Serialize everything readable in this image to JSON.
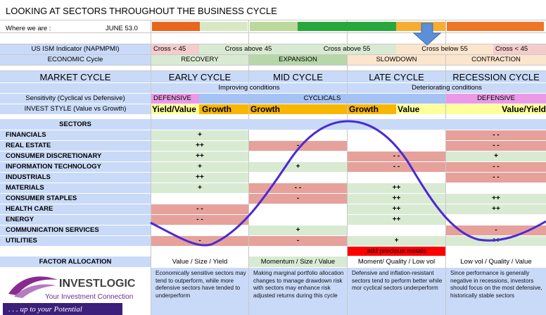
{
  "title": "LOOKING AT SECTORS THROUGHOUT THE BUSINESS CYCLE",
  "where_we_are": {
    "label": "Where we are :",
    "value": "JUNE 53.0"
  },
  "ism": {
    "label": "US ISM Indicator (NAPMPMI)",
    "cells": [
      "Cross < 45",
      "Cross above 45",
      "Cross above 55",
      "Cross below 55",
      "Cross < 45"
    ]
  },
  "economic": {
    "label": "ECONOMIC Cycle",
    "cells": [
      "RECOVERY",
      "EXPANSION",
      "SLOWDOWN",
      "CONTRACTION"
    ]
  },
  "market": {
    "label": "MARKET CYCLE",
    "phases": [
      "EARLY CYCLE",
      "MID CYCLE",
      "LATE CYCLE",
      "RECESSION CYCLE"
    ]
  },
  "conditions": {
    "improving": "Improving conditions",
    "deteriorating": "Deteriorating conditions"
  },
  "sensitivity": {
    "label": "Sensitivity (Cyclical vs Defensive)",
    "early": "DEFENSIVE",
    "cyclicals": "CYCLICALS",
    "recession": "DEFENSIVE"
  },
  "invest_style": {
    "label": "INVEST STYLE (Value vs Growth)",
    "cells": [
      "Yield/Value",
      "Growth",
      "Growth",
      "Growth",
      "Value",
      "Value/Yield"
    ]
  },
  "sectors": {
    "label": "SECTORS",
    "rows": [
      {
        "name": "FINANCIALS",
        "early": "+",
        "mid": "",
        "late": "",
        "recession": "- -"
      },
      {
        "name": "REAL ESTATE",
        "early": "++",
        "mid": "-",
        "late": "",
        "recession": "- -"
      },
      {
        "name": "CONSUMER DISCRETIONARY",
        "early": "++",
        "mid": "",
        "late": "- -",
        "recession": "+"
      },
      {
        "name": "INFORMATION TECHNOLOGY",
        "early": "+",
        "mid": "+",
        "late": "- -",
        "recession": "- -"
      },
      {
        "name": "INDUSTRIALS",
        "early": "++",
        "mid": "",
        "late": "",
        "recession": "- -"
      },
      {
        "name": "MATERIALS",
        "early": "+",
        "mid": "- -",
        "late": "++",
        "recession": ""
      },
      {
        "name": "CONSUMER STAPLES",
        "early": "",
        "mid": "-",
        "late": "++",
        "recession": "++"
      },
      {
        "name": "HEALTH CARE",
        "early": "- -",
        "mid": "",
        "late": "++",
        "recession": "++"
      },
      {
        "name": "ENERGY",
        "early": "- -",
        "mid": "",
        "late": "++",
        "recession": ""
      },
      {
        "name": "COMMUNICATION SERVICES",
        "early": "",
        "mid": "+",
        "late": "",
        "recession": "-"
      },
      {
        "name": "UTILITIES",
        "early": "-",
        "mid": "-",
        "late": "+",
        "recession": "++"
      }
    ]
  },
  "precious_metals": "add precious metals",
  "factor": {
    "label": "FACTOR ALLOCATION",
    "cells": [
      "Value / Size / Yield",
      "Momentum / Size / Value",
      "Moment/ Quality / Low vol",
      "Low vol / Quality / Value"
    ]
  },
  "descriptions": [
    "Economically sensitive sectors may tend to outperform, while more defensive sectors have tended to underperform",
    "Making marginal portfolio allocation changes to manage drawdown risk with sectors may enhance risk adjusted returns during this cycle",
    "Defensive and inflation-resistant sectors tend to perform better while mor cyclical sectors underperform",
    "Since performance is generally negative in recessions, investors should focus on the most defensive, historically stable sectors"
  ],
  "logo": {
    "brand_left": "IN",
    "brand_right": "VESTLOGIC",
    "tagline": "Your Investment Connection",
    "slogan": ". . . up to your Potential"
  },
  "colors": {
    "blue": "#c9daf8",
    "green": "#d9ead3",
    "red": "#e6a19b",
    "orange": "#f7b600",
    "magenta": "#ea9ae6",
    "yellow": "#fdff9a",
    "curve": "#4a2ad6",
    "metals": "#ff0000",
    "bar": [
      "#e8661e",
      "#d9e8c4",
      "#bad99a",
      "#27a83b",
      "#f7ad33",
      "#ee7626"
    ]
  },
  "icons": {
    "marker": "down-arrow-icon"
  }
}
